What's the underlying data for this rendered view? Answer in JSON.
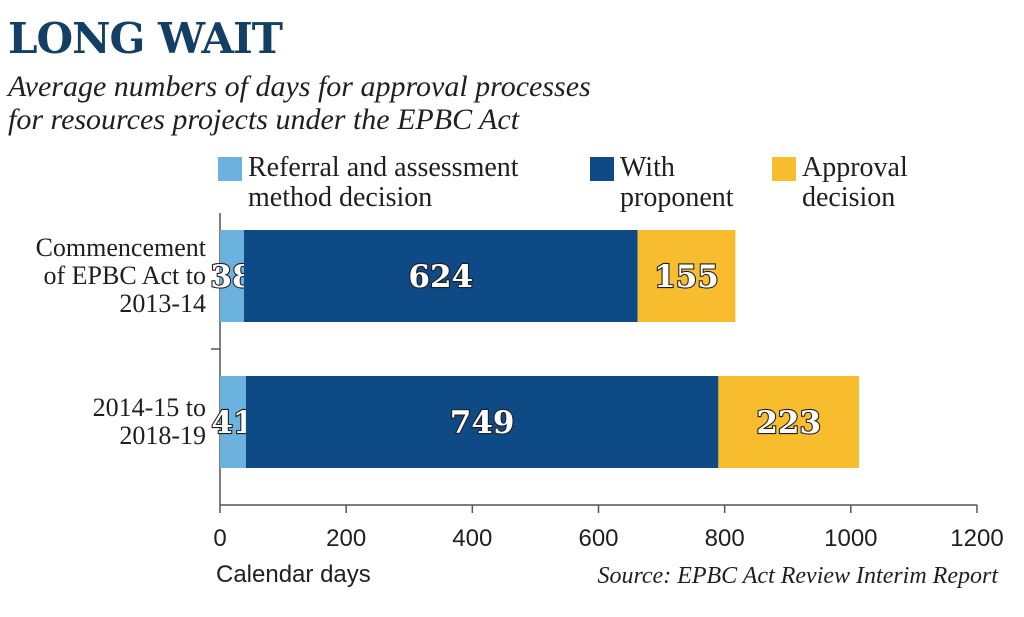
{
  "header": {
    "title": "LONG WAIT",
    "subtitle_line1": "Average numbers of days for approval processes",
    "subtitle_line2": "for resources projects under the EPBC Act"
  },
  "legend": [
    {
      "line1": "Referral and assessment",
      "line2": "method decision",
      "color": "#6bb3de"
    },
    {
      "line1": "With",
      "line2": "proponent",
      "color": "#0d4a86"
    },
    {
      "line1": "Approval",
      "line2": "decision",
      "color": "#f7bd2e"
    }
  ],
  "source": "Source: EPBC Act Review Interim Report",
  "chart_data": {
    "type": "bar",
    "orientation": "horizontal",
    "stacked": true,
    "categories": [
      [
        "Commencement",
        "of EPBC Act to",
        "2013-14"
      ],
      [
        "2014-15 to",
        "2018-19"
      ]
    ],
    "series": [
      {
        "name": "Referral and assessment method decision",
        "values": [
          38,
          41
        ],
        "color": "#6bb3de"
      },
      {
        "name": "With proponent",
        "values": [
          624,
          749
        ],
        "color": "#0d4a86"
      },
      {
        "name": "Approval decision",
        "values": [
          155,
          223
        ],
        "color": "#f7bd2e"
      }
    ],
    "xlabel": "Calendar days",
    "xlim": [
      0,
      1200
    ],
    "xticks": [
      0,
      200,
      400,
      600,
      800,
      1000,
      1200
    ],
    "grid": false,
    "legend_position": "top"
  }
}
